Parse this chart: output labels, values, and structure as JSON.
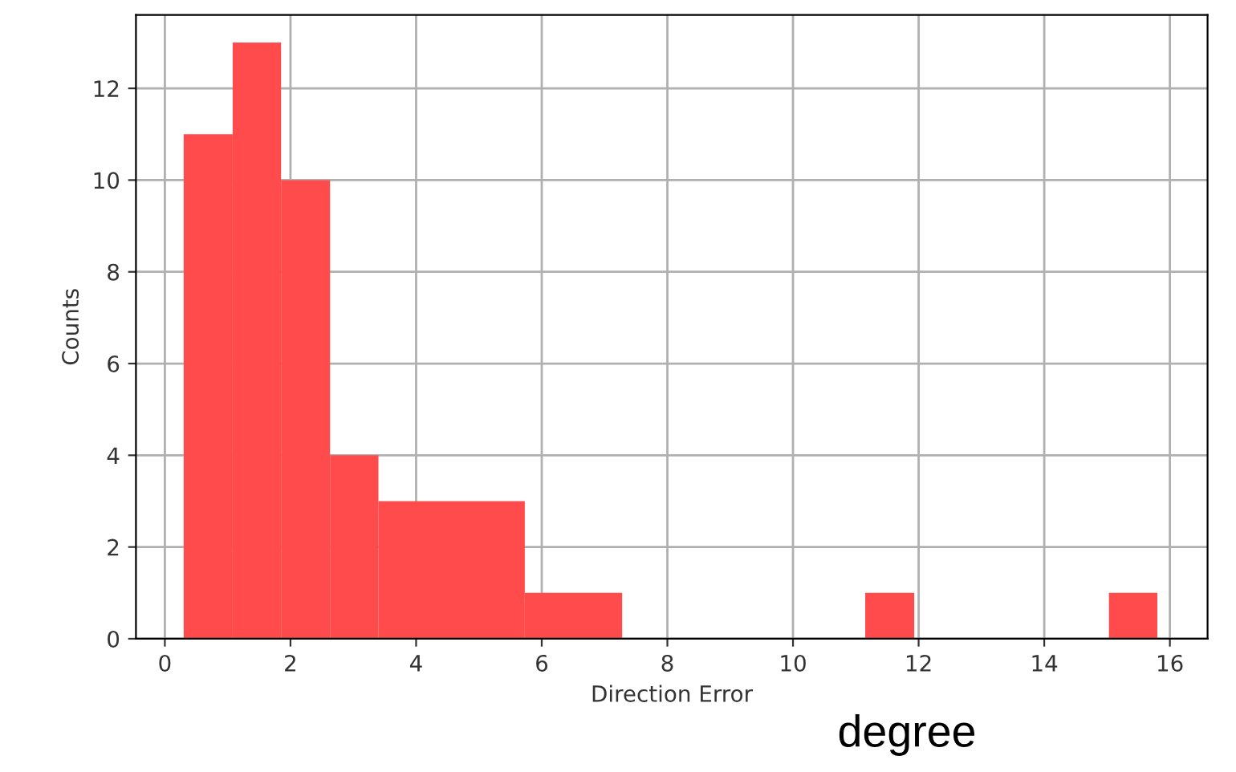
{
  "chart_data": {
    "type": "histogram",
    "xlabel": "Direction Error",
    "ylabel": "Counts",
    "bins": [
      0.3,
      1.08,
      1.85,
      2.63,
      3.4,
      5.73,
      7.28,
      11.15,
      11.93,
      15.03,
      15.8
    ],
    "values": [
      11,
      13,
      10,
      4,
      3,
      1,
      0,
      1,
      0,
      1
    ],
    "color": "#ff4b4b",
    "xlim": [
      -0.46,
      16.6
    ],
    "ylim": [
      0,
      13.6
    ],
    "xticks": [
      0,
      2,
      4,
      6,
      8,
      10,
      12,
      14,
      16
    ],
    "yticks": [
      0,
      2,
      4,
      6,
      8,
      10,
      12
    ],
    "grid": true,
    "annotations": [
      "degree"
    ]
  }
}
